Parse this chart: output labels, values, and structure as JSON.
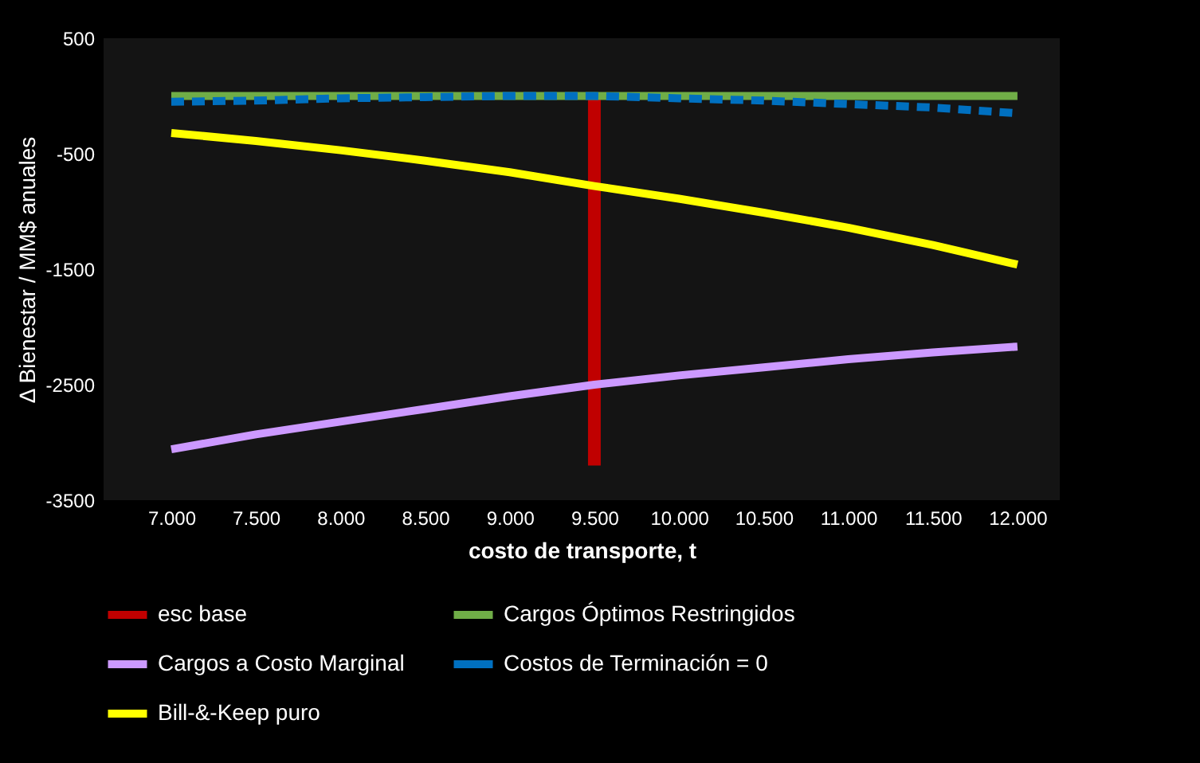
{
  "chart_data": {
    "type": "line",
    "xlabel": "costo de transporte, t",
    "ylabel": "Δ Bienestar / MM$ anuales",
    "x": [
      7000,
      7500,
      8000,
      8500,
      9000,
      9500,
      10000,
      10500,
      11000,
      11500,
      12000
    ],
    "xlim": [
      6600,
      12250
    ],
    "xticks": [
      {
        "value": 7000,
        "label": "7.000"
      },
      {
        "value": 7500,
        "label": "7.500"
      },
      {
        "value": 8000,
        "label": "8.000"
      },
      {
        "value": 8500,
        "label": "8.500"
      },
      {
        "value": 9000,
        "label": "9.000"
      },
      {
        "value": 9500,
        "label": "9.500"
      },
      {
        "value": 10000,
        "label": "10.000"
      },
      {
        "value": 10500,
        "label": "10.500"
      },
      {
        "value": 11000,
        "label": "11.000"
      },
      {
        "value": 11500,
        "label": "11.500"
      },
      {
        "value": 12000,
        "label": "12.000"
      }
    ],
    "ylim": [
      -3500,
      500
    ],
    "yticks": [
      500,
      -500,
      -1500,
      -2500,
      -3500
    ],
    "legend": "bottom",
    "grid": false,
    "line_style": "solid",
    "series": [
      {
        "name": "esc base",
        "type": "bar",
        "color": "#c00000",
        "x": [
          9500
        ],
        "values": [
          -3200
        ]
      },
      {
        "name": "Cargos Óptimos Restringidos",
        "color": "#70ad47",
        "values": [
          0,
          0,
          0,
          0,
          0,
          0,
          0,
          0,
          0,
          0,
          0
        ]
      },
      {
        "name": "Cargos a Costo Marginal",
        "color": "#cc99ff",
        "values": [
          -3060,
          -2930,
          -2820,
          -2710,
          -2600,
          -2500,
          -2420,
          -2350,
          -2280,
          -2220,
          -2170
        ]
      },
      {
        "name": "Costos de Terminación = 0",
        "color": "#0070c0",
        "line_style": "dashed",
        "values": [
          -50,
          -40,
          -20,
          -10,
          0,
          0,
          -20,
          -40,
          -70,
          -100,
          -150
        ]
      },
      {
        "name": "Bill-&-Keep puro",
        "color": "#ffff00",
        "values": [
          -320,
          -390,
          -470,
          -560,
          -660,
          -780,
          -890,
          -1010,
          -1140,
          -1290,
          -1460
        ]
      }
    ]
  }
}
